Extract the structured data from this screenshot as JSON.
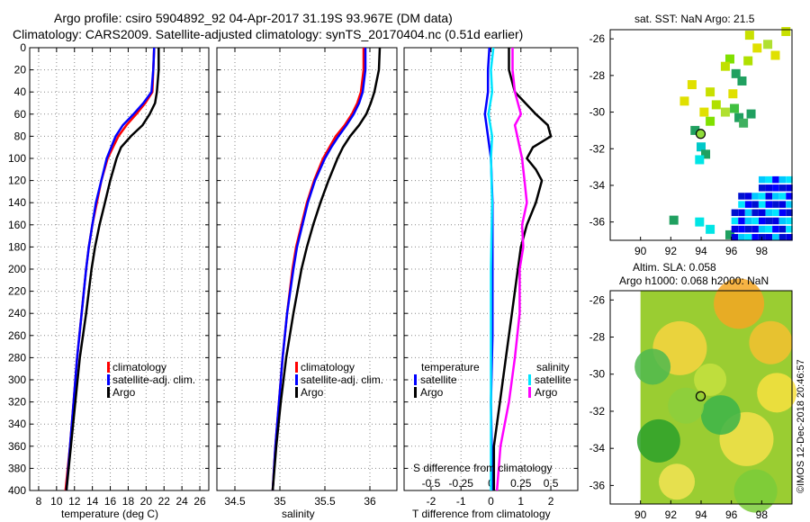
{
  "header": {
    "line1": "Argo profile: csiro 5904892_92 04-Apr-2017 31.19S 93.967E (DM data)",
    "line2": "Climatology: CARS2009. Satellite-adjusted climatology: synTS_20170404.nc (0.51d earlier)"
  },
  "colors": {
    "climatology": "#ff0000",
    "satellite": "#0000ff",
    "argo": "#000000",
    "sat_salinity": "#00e5ff",
    "sal_diff": "#ff00ff",
    "grid": "#888888"
  },
  "chart_data": [
    {
      "id": "temperature",
      "type": "line",
      "xlabel": "temperature (deg C)",
      "ylabel": "",
      "xlim": [
        7,
        27
      ],
      "ylim": [
        400,
        0
      ],
      "xticks": [
        8,
        10,
        12,
        14,
        16,
        18,
        20,
        22,
        24,
        26
      ],
      "yticks": [
        0,
        20,
        40,
        60,
        80,
        100,
        120,
        140,
        160,
        180,
        200,
        220,
        240,
        260,
        280,
        300,
        320,
        340,
        360,
        380,
        400
      ],
      "legend": [
        "climatology",
        "satellite-adj. clim.",
        "Argo"
      ],
      "series": [
        {
          "name": "climatology",
          "color": "#ff0000",
          "depth": [
            0,
            20,
            40,
            50,
            60,
            70,
            80,
            90,
            100,
            120,
            140,
            160,
            180,
            200,
            240,
            280,
            320,
            360,
            400
          ],
          "values": [
            20.9,
            20.8,
            20.7,
            19.9,
            18.9,
            17.8,
            16.9,
            16.3,
            15.7,
            15.0,
            14.5,
            14.0,
            13.6,
            13.3,
            12.8,
            12.3,
            11.9,
            11.5,
            11.0
          ]
        },
        {
          "name": "satellite-adj. clim.",
          "color": "#0000ff",
          "depth": [
            0,
            20,
            40,
            50,
            60,
            70,
            80,
            90,
            100,
            120,
            140,
            160,
            180,
            200,
            240,
            280,
            320,
            360,
            400
          ],
          "values": [
            20.9,
            20.8,
            20.6,
            19.7,
            18.6,
            17.4,
            16.6,
            16.1,
            15.6,
            15.0,
            14.4,
            14.0,
            13.6,
            13.3,
            12.8,
            12.3,
            11.9,
            11.5,
            11.1
          ]
        },
        {
          "name": "Argo",
          "color": "#000000",
          "depth": [
            0,
            20,
            40,
            50,
            60,
            70,
            80,
            90,
            100,
            120,
            140,
            160,
            180,
            200,
            240,
            280,
            320,
            360,
            400
          ],
          "values": [
            21.4,
            21.4,
            21.2,
            21.0,
            20.4,
            19.6,
            18.3,
            17.2,
            16.7,
            16.0,
            15.4,
            14.8,
            14.3,
            13.9,
            13.3,
            12.6,
            12.1,
            11.6,
            11.1
          ]
        }
      ]
    },
    {
      "id": "salinity",
      "type": "line",
      "xlabel": "salinity",
      "xlim": [
        34.3,
        36.3
      ],
      "ylim": [
        400,
        0
      ],
      "xticks": [
        34.5,
        35,
        35.5,
        36
      ],
      "xticklabels": [
        "34.5",
        "35",
        "35.5",
        "36"
      ],
      "legend": [
        "climatology",
        "satellite-adj. clim.",
        "Argo"
      ],
      "series": [
        {
          "name": "climatology",
          "color": "#ff0000",
          "depth": [
            0,
            20,
            40,
            50,
            60,
            70,
            80,
            90,
            100,
            120,
            140,
            160,
            180,
            200,
            240,
            280,
            320,
            360,
            400
          ],
          "values": [
            35.93,
            35.93,
            35.9,
            35.86,
            35.8,
            35.72,
            35.62,
            35.55,
            35.48,
            35.38,
            35.3,
            35.24,
            35.18,
            35.14,
            35.08,
            35.03,
            34.99,
            34.95,
            34.92
          ]
        },
        {
          "name": "satellite-adj. clim.",
          "color": "#0000ff",
          "depth": [
            0,
            20,
            40,
            50,
            60,
            70,
            80,
            90,
            100,
            120,
            140,
            160,
            180,
            200,
            240,
            280,
            320,
            360,
            400
          ],
          "values": [
            35.95,
            35.95,
            35.92,
            35.88,
            35.82,
            35.74,
            35.65,
            35.57,
            35.5,
            35.39,
            35.31,
            35.25,
            35.19,
            35.15,
            35.08,
            35.03,
            34.99,
            34.95,
            34.92
          ]
        },
        {
          "name": "Argo",
          "color": "#000000",
          "depth": [
            0,
            20,
            40,
            50,
            60,
            70,
            80,
            90,
            100,
            120,
            140,
            160,
            180,
            200,
            240,
            280,
            320,
            360,
            400
          ],
          "values": [
            36.11,
            36.1,
            36.05,
            36.01,
            35.96,
            35.88,
            35.78,
            35.7,
            35.64,
            35.54,
            35.45,
            35.37,
            35.3,
            35.24,
            35.15,
            35.07,
            35.01,
            34.96,
            34.92
          ]
        }
      ]
    },
    {
      "id": "differences",
      "type": "line",
      "xlabel": "T difference from climatology",
      "toplabel": "S difference from climatology",
      "xlim": [
        -2.9,
        2.9
      ],
      "ylim": [
        400,
        0
      ],
      "xticks": [
        -2,
        -1,
        0,
        1,
        2
      ],
      "xticklabels": [
        "-2",
        "-1",
        "0",
        "1",
        "2"
      ],
      "sticks": [
        -0.5,
        -0.25,
        0,
        0.25,
        0.5
      ],
      "sticklabels": [
        "-0.5",
        "-0.25",
        "0",
        "0.25",
        "0.5"
      ],
      "legend_left_title": "temperature",
      "legend_right_title": "salinity",
      "legend_left": [
        "satellite",
        "Argo"
      ],
      "legend_right": [
        "satellite",
        "Argo"
      ],
      "series": [
        {
          "name": "T satellite",
          "color": "#0000ff",
          "depth": [
            0,
            20,
            40,
            60,
            80,
            100,
            140,
            200,
            260,
            320,
            400
          ],
          "values": [
            -0.05,
            -0.1,
            -0.1,
            -0.2,
            -0.1,
            0.0,
            0.05,
            0.05,
            0.05,
            0.0,
            0.05
          ]
        },
        {
          "name": "T Argo",
          "color": "#000000",
          "depth": [
            0,
            20,
            40,
            60,
            70,
            80,
            85,
            90,
            100,
            110,
            120,
            140,
            160,
            180,
            200,
            240,
            280,
            320,
            360,
            400
          ],
          "values": [
            0.6,
            0.6,
            0.8,
            1.5,
            1.9,
            2.0,
            1.7,
            1.4,
            1.2,
            1.5,
            1.7,
            1.5,
            1.2,
            1.0,
            0.9,
            0.7,
            0.5,
            0.3,
            0.1,
            0.1
          ]
        },
        {
          "name": "S satellite",
          "color": "#00e5ff",
          "depth": [
            0,
            20,
            40,
            60,
            80,
            100,
            140,
            200,
            260,
            320,
            400
          ],
          "values": [
            0.02,
            0.0,
            0.01,
            -0.02,
            0.01,
            0.0,
            0.01,
            0.0,
            0.0,
            0.0,
            0.0
          ]
        },
        {
          "name": "S Argo",
          "color": "#ff00ff",
          "depth": [
            0,
            20,
            40,
            60,
            70,
            80,
            90,
            100,
            110,
            120,
            140,
            160,
            180,
            200,
            240,
            280,
            320,
            360,
            400
          ],
          "values": [
            0.18,
            0.18,
            0.2,
            0.25,
            0.2,
            0.22,
            0.24,
            0.26,
            0.27,
            0.28,
            0.3,
            0.26,
            0.27,
            0.24,
            0.24,
            0.2,
            0.15,
            0.08,
            0.05
          ]
        }
      ]
    },
    {
      "id": "sst_map",
      "type": "scatter",
      "title": "sat. SST: NaN Argo: 21.5",
      "xlim": [
        88,
        100
      ],
      "ylim": [
        -37,
        -25.5
      ],
      "xticks": [
        90,
        92,
        94,
        96,
        98
      ],
      "yticks": [
        -26,
        -28,
        -30,
        -32,
        -34,
        -36
      ],
      "argo_position": [
        93.97,
        -31.19
      ]
    },
    {
      "id": "sla_map",
      "type": "heatmap",
      "title1": "Altim. SLA: 0.058",
      "title2": "Argo h1000: 0.068 h2000: NaN",
      "xlim": [
        88,
        100
      ],
      "ylim": [
        -37,
        -25.5
      ],
      "xticks": [
        90,
        92,
        94,
        96,
        98
      ],
      "yticks": [
        -26,
        -28,
        -30,
        -32,
        -34,
        -36
      ],
      "argo_position": [
        93.97,
        -31.19
      ]
    }
  ],
  "footer": {
    "credit": "©IMOS 12-Dec-2018 20:46:57"
  }
}
